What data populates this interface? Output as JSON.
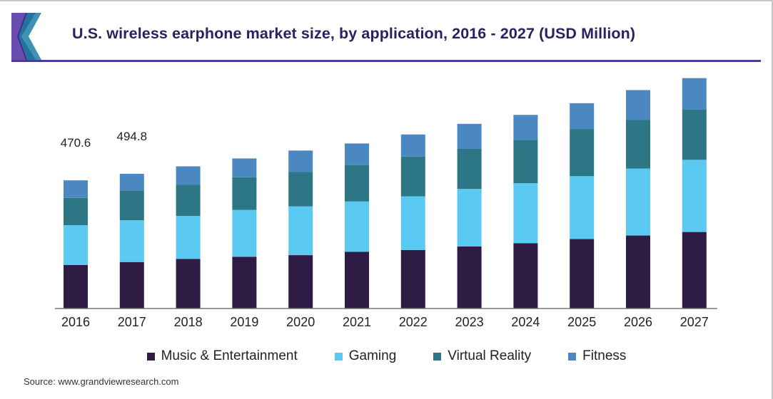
{
  "header": {
    "title": "U.S. wireless earphone market size, by application, 2016 - 2027 (USD Million)"
  },
  "source": "Source: www.grandviewresearch.com",
  "chart_data": {
    "type": "bar",
    "stacked": true,
    "categories": [
      "2016",
      "2017",
      "2018",
      "2019",
      "2020",
      "2021",
      "2022",
      "2023",
      "2024",
      "2025",
      "2026",
      "2027"
    ],
    "series": [
      {
        "name": "Music & Entertainment",
        "color": "#2f1c44",
        "values": [
          160.0,
          170.7,
          182.0,
          190.0,
          196.0,
          208.0,
          215.0,
          228.0,
          240.0,
          255.0,
          268.0,
          281.0
        ]
      },
      {
        "name": "Gaming",
        "color": "#5bcaf3",
        "values": [
          146.0,
          153.3,
          158.0,
          172.0,
          179.0,
          185.0,
          197.0,
          211.0,
          220.0,
          231.0,
          246.0,
          265.0
        ]
      },
      {
        "name": "Virtual Reality",
        "color": "#2d7686",
        "values": [
          100.0,
          109.4,
          114.0,
          120.0,
          126.0,
          133.0,
          146.0,
          147.0,
          159.0,
          172.0,
          178.0,
          185.0
        ]
      },
      {
        "name": "Fitness",
        "color": "#4b88c2",
        "values": [
          64.6,
          61.4,
          68.0,
          69.0,
          79.0,
          80.0,
          81.0,
          92.0,
          92.0,
          96.0,
          110.0,
          115.0
        ]
      }
    ],
    "data_labels": [
      {
        "category": "2016",
        "text": "470.6"
      },
      {
        "category": "2017",
        "text": "494.8"
      }
    ],
    "ylim": [
      0,
      900
    ],
    "grid": false,
    "legend_position": "bottom"
  }
}
